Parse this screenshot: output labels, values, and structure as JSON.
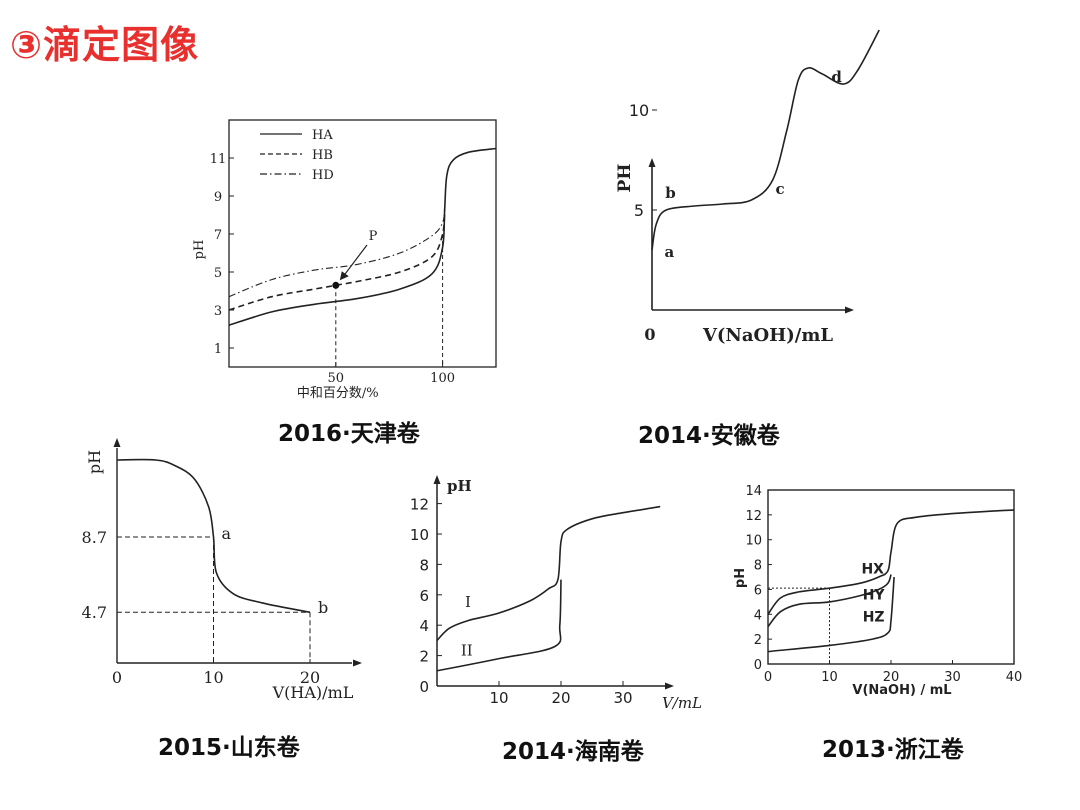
{
  "page": {
    "title": "③滴定图像"
  },
  "captions": [
    "2016·天津卷",
    "2014·安徽卷",
    "2015·山东卷",
    "2014·海南卷",
    "2013·浙江卷"
  ],
  "chart_data": [
    {
      "type": "line",
      "caption": "2016·天津卷",
      "xlabel": "中和百分数/%",
      "ylabel": "pH",
      "xlim": [
        0,
        125
      ],
      "ylim": [
        0,
        13
      ],
      "xticks": [
        50,
        100
      ],
      "yticks": [
        1,
        3,
        5,
        7,
        9,
        11
      ],
      "legend": {
        "placement": "top-left",
        "entries": [
          "HA",
          "HB",
          "HD"
        ]
      },
      "annotations": [
        "P"
      ],
      "series": [
        {
          "name": "HA",
          "style": "solid",
          "points": [
            [
              0,
              2.2
            ],
            [
              20,
              2.9
            ],
            [
              40,
              3.3
            ],
            [
              60,
              3.6
            ],
            [
              80,
              4.1
            ],
            [
              95,
              4.9
            ],
            [
              100,
              6.3
            ],
            [
              101,
              8.3
            ],
            [
              102,
              10.1
            ],
            [
              105,
              10.9
            ],
            [
              112,
              11.3
            ],
            [
              125,
              11.5
            ]
          ]
        },
        {
          "name": "HB",
          "style": "dashed",
          "points": [
            [
              0,
              3.0
            ],
            [
              20,
              3.7
            ],
            [
              40,
              4.1
            ],
            [
              50,
              4.3
            ],
            [
              60,
              4.5
            ],
            [
              80,
              5.0
            ],
            [
              95,
              5.8
            ],
            [
              100,
              7.0
            ],
            [
              101,
              8.3
            ]
          ]
        },
        {
          "name": "HD",
          "style": "dashdot",
          "points": [
            [
              0,
              3.7
            ],
            [
              20,
              4.6
            ],
            [
              40,
              5.1
            ],
            [
              60,
              5.4
            ],
            [
              80,
              6.0
            ],
            [
              95,
              6.9
            ],
            [
              100,
              7.6
            ],
            [
              101,
              8.4
            ]
          ]
        }
      ]
    },
    {
      "type": "line",
      "caption": "2014·安徽卷",
      "xlabel": "V(NaOH)/mL",
      "ylabel": "PH",
      "xticks": [
        "0"
      ],
      "yticks": [
        5,
        10
      ],
      "point_labels": [
        "a",
        "b",
        "c",
        "d"
      ],
      "series": [
        {
          "points": [
            [
              0,
              3
            ],
            [
              0.3,
              4.3
            ],
            [
              1,
              5.0
            ],
            [
              3,
              5.2
            ],
            [
              5,
              5.3
            ],
            [
              7,
              5.5
            ],
            [
              8.5,
              6.5
            ],
            [
              9.5,
              9
            ],
            [
              10.3,
              11.5
            ],
            [
              11,
              12.1
            ],
            [
              12,
              11.8
            ],
            [
              13.5,
              11.3
            ],
            [
              14.5,
              12
            ],
            [
              16,
              14
            ]
          ]
        }
      ]
    },
    {
      "type": "line",
      "caption": "2015·山东卷",
      "xlabel": "V(HA)/mL",
      "ylabel": "pH",
      "xlim": [
        0,
        25
      ],
      "xticks": [
        0,
        10,
        20
      ],
      "yticks": [
        4.7,
        8.7
      ],
      "point_labels": [
        "a",
        "b"
      ],
      "series": [
        {
          "points": [
            [
              0,
              12.8
            ],
            [
              4,
              12.8
            ],
            [
              6,
              12.5
            ],
            [
              8,
              11.8
            ],
            [
              9.5,
              10.3
            ],
            [
              10,
              8.7
            ],
            [
              10.3,
              6.8
            ],
            [
              12,
              5.7
            ],
            [
              15,
              5.2
            ],
            [
              20,
              4.7
            ]
          ]
        }
      ]
    },
    {
      "type": "line",
      "caption": "2014·海南卷",
      "xlabel": "V/mL",
      "ylabel": "pH",
      "xlim": [
        0,
        40
      ],
      "ylim": [
        0,
        13
      ],
      "xticks": [
        10,
        20,
        30
      ],
      "yticks": [
        0,
        2,
        4,
        6,
        8,
        10,
        12
      ],
      "series": [
        {
          "name": "I",
          "points": [
            [
              0,
              3.0
            ],
            [
              2,
              3.8
            ],
            [
              5,
              4.3
            ],
            [
              10,
              4.8
            ],
            [
              15,
              5.6
            ],
            [
              18,
              6.4
            ],
            [
              19.5,
              7.0
            ],
            [
              20,
              9.5
            ],
            [
              21,
              10.3
            ],
            [
              25,
              11
            ],
            [
              30,
              11.4
            ],
            [
              36,
              11.8
            ]
          ]
        },
        {
          "name": "II",
          "points": [
            [
              0,
              1.0
            ],
            [
              10,
              1.8
            ],
            [
              19,
              2.6
            ],
            [
              19.8,
              4.0
            ],
            [
              20,
              7.0
            ]
          ]
        }
      ]
    },
    {
      "type": "line",
      "caption": "2013·浙江卷",
      "xlabel": "V(NaOH) / mL",
      "ylabel": "pH",
      "xlim": [
        0,
        40
      ],
      "ylim": [
        0,
        14
      ],
      "xticks": [
        0,
        10,
        20,
        30,
        40
      ],
      "yticks": [
        0,
        2,
        4,
        6,
        8,
        10,
        12,
        14
      ],
      "series": [
        {
          "name": "HX",
          "points": [
            [
              0,
              4.0
            ],
            [
              2,
              5.3
            ],
            [
              5,
              5.8
            ],
            [
              10,
              6.1
            ],
            [
              15,
              6.5
            ],
            [
              18,
              7.0
            ],
            [
              19.5,
              7.5
            ],
            [
              20,
              9.0
            ],
            [
              21,
              11.3
            ],
            [
              24,
              11.8
            ],
            [
              30,
              12.1
            ],
            [
              40,
              12.4
            ]
          ]
        },
        {
          "name": "HY",
          "points": [
            [
              0,
              3.0
            ],
            [
              2,
              4.2
            ],
            [
              5,
              4.8
            ],
            [
              10,
              5.0
            ],
            [
              15,
              5.5
            ],
            [
              18,
              6.0
            ],
            [
              19.5,
              6.5
            ],
            [
              20,
              7.2
            ]
          ]
        },
        {
          "name": "HZ",
          "points": [
            [
              0,
              1.0
            ],
            [
              10,
              1.5
            ],
            [
              17,
              2.0
            ],
            [
              19.5,
              2.5
            ],
            [
              20,
              3.5
            ],
            [
              20.5,
              7.0
            ]
          ]
        }
      ]
    }
  ]
}
